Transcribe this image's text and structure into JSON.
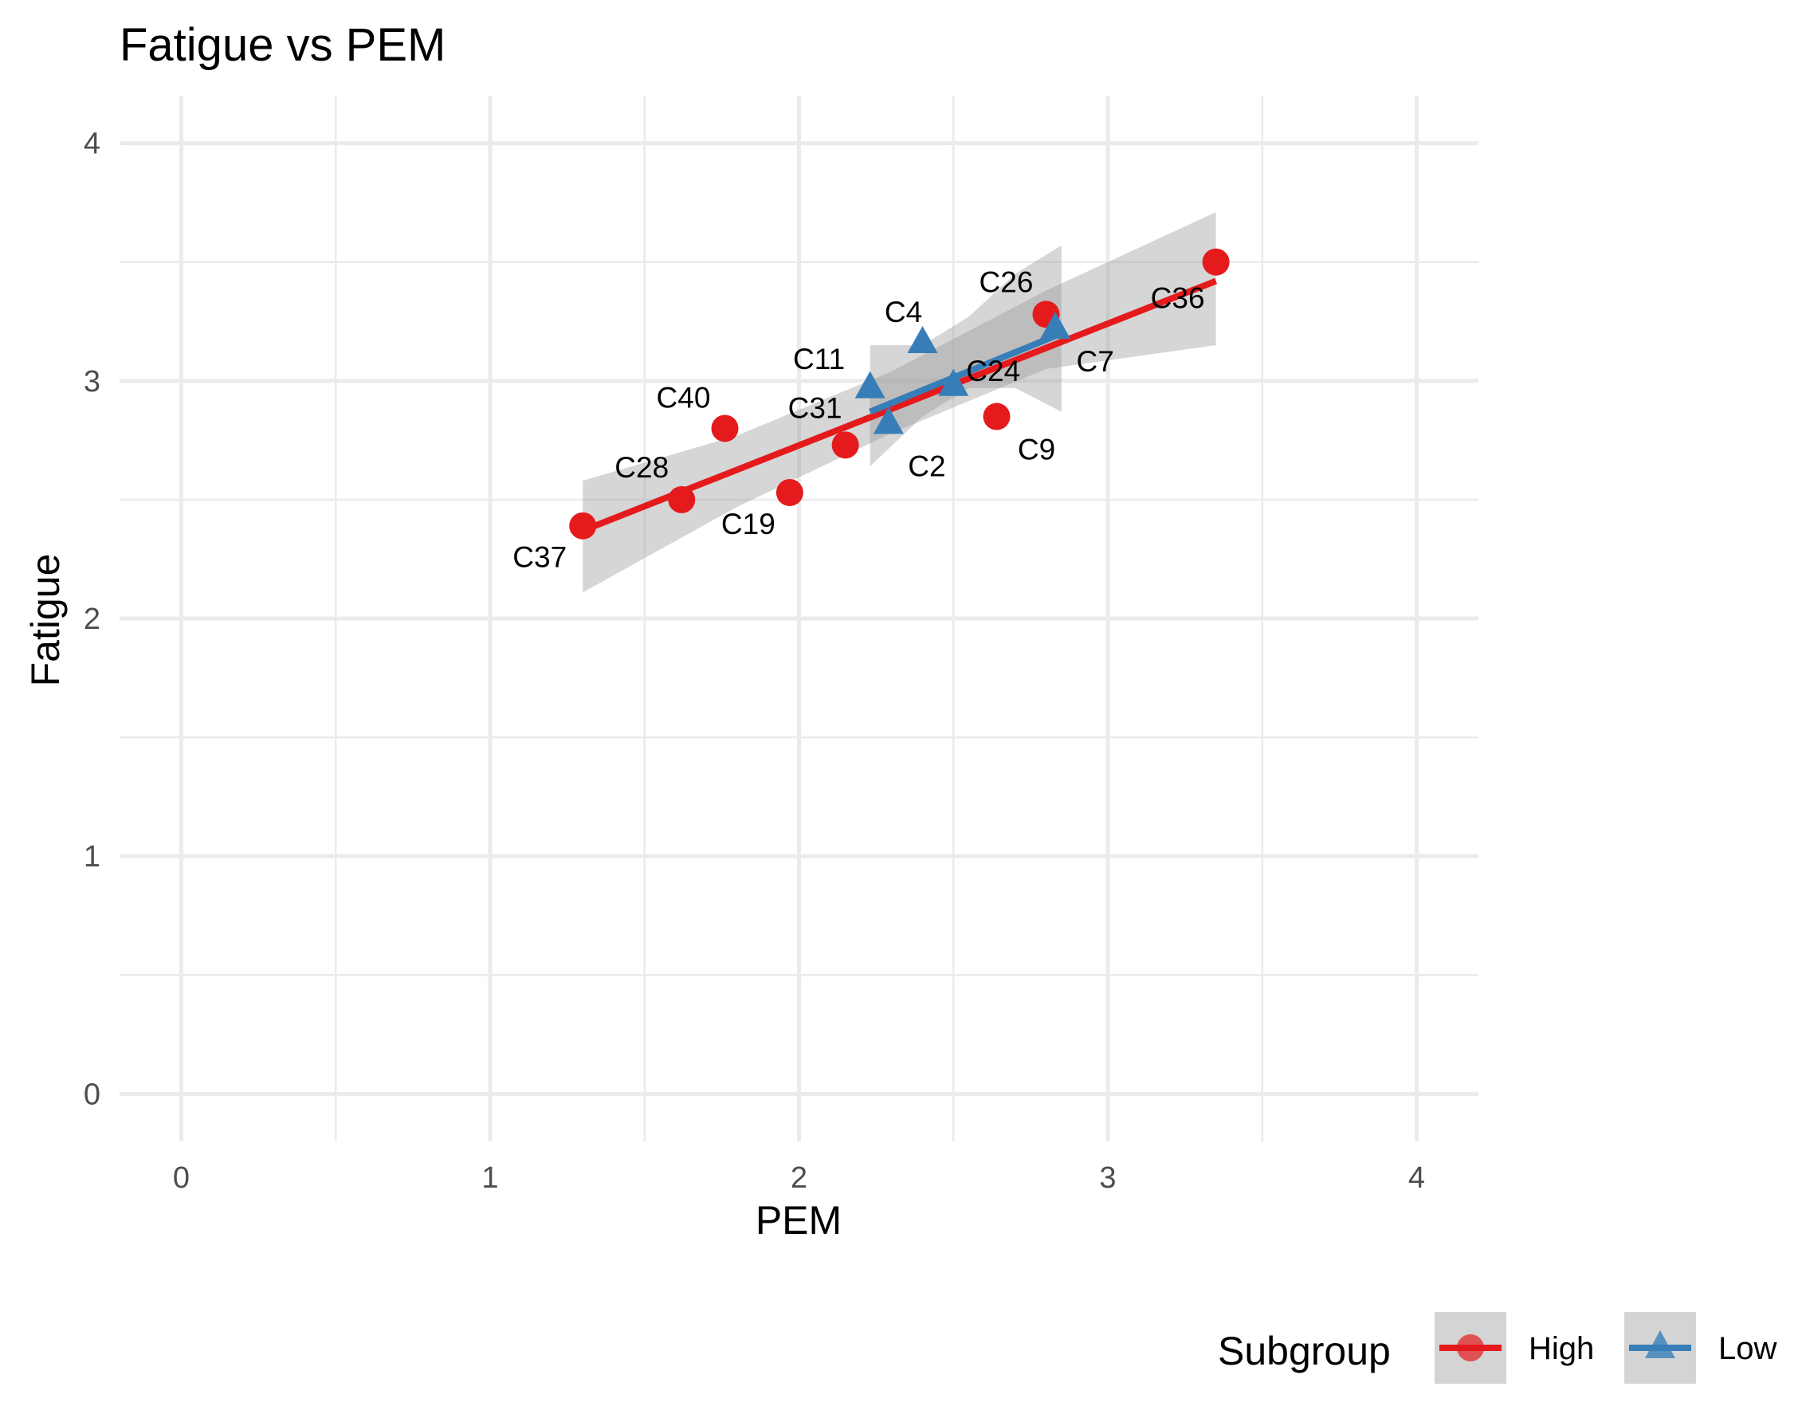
{
  "chart_data": {
    "type": "scatter",
    "title": "Fatigue vs PEM",
    "xlabel": "PEM",
    "ylabel": "Fatigue",
    "xlim": [
      -0.2,
      4.2
    ],
    "ylim": [
      -0.2,
      4.2
    ],
    "x_ticks": [
      "0",
      "1",
      "2",
      "3",
      "4"
    ],
    "y_ticks": [
      "0",
      "1",
      "2",
      "3",
      "4"
    ],
    "grid": true,
    "legend": {
      "title": "Subgroup",
      "placement": "bottom-right",
      "items": [
        {
          "label": "High",
          "shape": "circle",
          "color": "#e41a1c"
        },
        {
          "label": "Low",
          "shape": "triangle",
          "color": "#377eb8"
        }
      ]
    },
    "series": [
      {
        "name": "High",
        "color": "#e41a1c",
        "shape": "circle",
        "points": [
          {
            "label": "C37",
            "x": 1.3,
            "y": 2.39
          },
          {
            "label": "C28",
            "x": 1.62,
            "y": 2.5
          },
          {
            "label": "C40",
            "x": 1.76,
            "y": 2.8
          },
          {
            "label": "C19",
            "x": 1.97,
            "y": 2.53
          },
          {
            "label": "C31",
            "x": 2.15,
            "y": 2.73
          },
          {
            "label": "C9",
            "x": 2.64,
            "y": 2.85
          },
          {
            "label": "C26",
            "x": 2.8,
            "y": 3.28
          },
          {
            "label": "C36",
            "x": 3.35,
            "y": 3.5
          }
        ],
        "fit": {
          "x": [
            1.3,
            3.35
          ],
          "y": [
            2.37,
            3.42
          ]
        },
        "ci_band": {
          "x": [
            1.3,
            1.8,
            2.3,
            2.8,
            3.35
          ],
          "lower": [
            2.11,
            2.47,
            2.78,
            3.05,
            3.15
          ],
          "upper": [
            2.58,
            2.77,
            3.04,
            3.38,
            3.71
          ]
        }
      },
      {
        "name": "Low",
        "color": "#377eb8",
        "shape": "triangle",
        "points": [
          {
            "label": "C11",
            "x": 2.23,
            "y": 2.97
          },
          {
            "label": "C2",
            "x": 2.29,
            "y": 2.82
          },
          {
            "label": "C4",
            "x": 2.4,
            "y": 3.16
          },
          {
            "label": "C24",
            "x": 2.5,
            "y": 2.98
          },
          {
            "label": "C7",
            "x": 2.83,
            "y": 3.22
          }
        ],
        "fit": {
          "x": [
            2.23,
            2.85
          ],
          "y": [
            2.87,
            3.2
          ]
        },
        "ci_band": {
          "x": [
            2.23,
            2.4,
            2.55,
            2.7,
            2.85
          ],
          "lower": [
            2.64,
            2.85,
            2.97,
            2.97,
            2.87
          ],
          "upper": [
            3.15,
            3.15,
            3.27,
            3.45,
            3.57
          ]
        }
      }
    ]
  }
}
